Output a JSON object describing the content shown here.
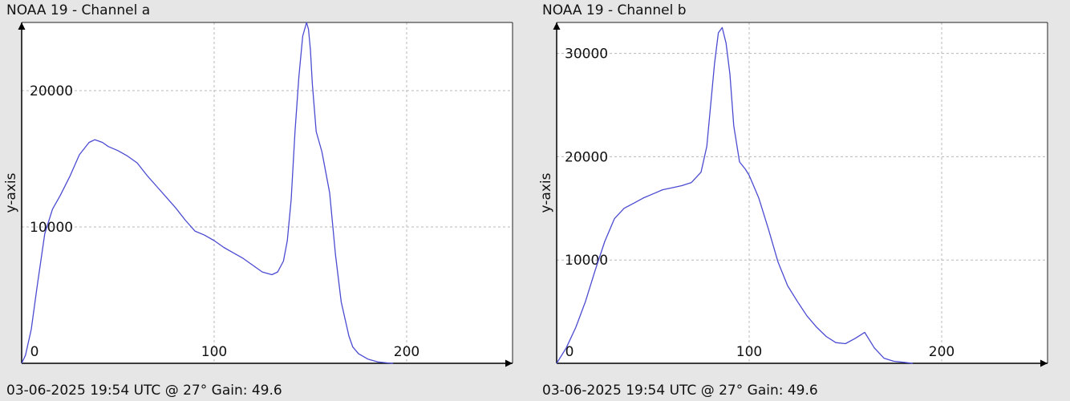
{
  "chart_data": [
    {
      "type": "line",
      "title": "NOAA 19 - Channel a",
      "footer": "03-06-2025 19:54 UTC @ 27° Gain: 49.6",
      "ylabel": "y-axis",
      "xlabel": "",
      "xlim": [
        0,
        255
      ],
      "ylim": [
        0,
        25000
      ],
      "x_ticks": [
        0,
        100,
        200
      ],
      "y_ticks": [
        10000,
        20000
      ],
      "grid": true,
      "color": "#4b4bd2",
      "series": [
        {
          "x": [
            0,
            2,
            5,
            8,
            12,
            16,
            20,
            25,
            30,
            35,
            38,
            40,
            42,
            45,
            50,
            55,
            60,
            65,
            70,
            75,
            80,
            85,
            90,
            95,
            100,
            105,
            110,
            115,
            120,
            125,
            130,
            133,
            136,
            138,
            140,
            142,
            144,
            146,
            148,
            149,
            150,
            151,
            153,
            156,
            160,
            163,
            166,
            170,
            172,
            175,
            180,
            185,
            190,
            193
          ],
          "y": [
            0,
            600,
            2500,
            5600,
            9500,
            11300,
            12300,
            13700,
            15300,
            16200,
            16400,
            16300,
            16200,
            15900,
            15600,
            15200,
            14700,
            13800,
            13000,
            12200,
            11400,
            10500,
            9700,
            9400,
            9000,
            8500,
            8100,
            7700,
            7200,
            6700,
            6500,
            6700,
            7500,
            9000,
            12000,
            17000,
            21000,
            24000,
            25000,
            24500,
            23000,
            20500,
            17000,
            15500,
            12500,
            8000,
            4500,
            2000,
            1200,
            700,
            300,
            100,
            30,
            0
          ]
        }
      ]
    },
    {
      "type": "line",
      "title": "NOAA 19 - Channel b",
      "footer": "03-06-2025 19:54 UTC @ 27° Gain: 49.6",
      "ylabel": "y-axis",
      "xlabel": "",
      "xlim": [
        0,
        255
      ],
      "ylim": [
        0,
        33000
      ],
      "x_ticks": [
        0,
        100,
        200
      ],
      "y_ticks": [
        10000,
        20000,
        30000
      ],
      "grid": true,
      "color": "#4b4bd2",
      "series": [
        {
          "x": [
            0,
            5,
            10,
            15,
            20,
            25,
            30,
            35,
            40,
            45,
            50,
            55,
            60,
            65,
            70,
            75,
            78,
            80,
            82,
            84,
            86,
            88,
            90,
            92,
            95,
            98,
            100,
            105,
            110,
            115,
            120,
            125,
            130,
            135,
            140,
            145,
            150,
            155,
            160,
            165,
            170,
            175,
            180,
            185
          ],
          "y": [
            0,
            1500,
            3500,
            6000,
            9000,
            11800,
            14000,
            15000,
            15500,
            16000,
            16400,
            16800,
            17000,
            17200,
            17500,
            18500,
            21000,
            25000,
            29000,
            32000,
            32500,
            31000,
            28000,
            23000,
            19500,
            18800,
            18200,
            16000,
            13000,
            9800,
            7500,
            6000,
            4600,
            3500,
            2600,
            2000,
            1900,
            2400,
            3000,
            1500,
            500,
            200,
            100,
            0
          ]
        }
      ]
    }
  ]
}
